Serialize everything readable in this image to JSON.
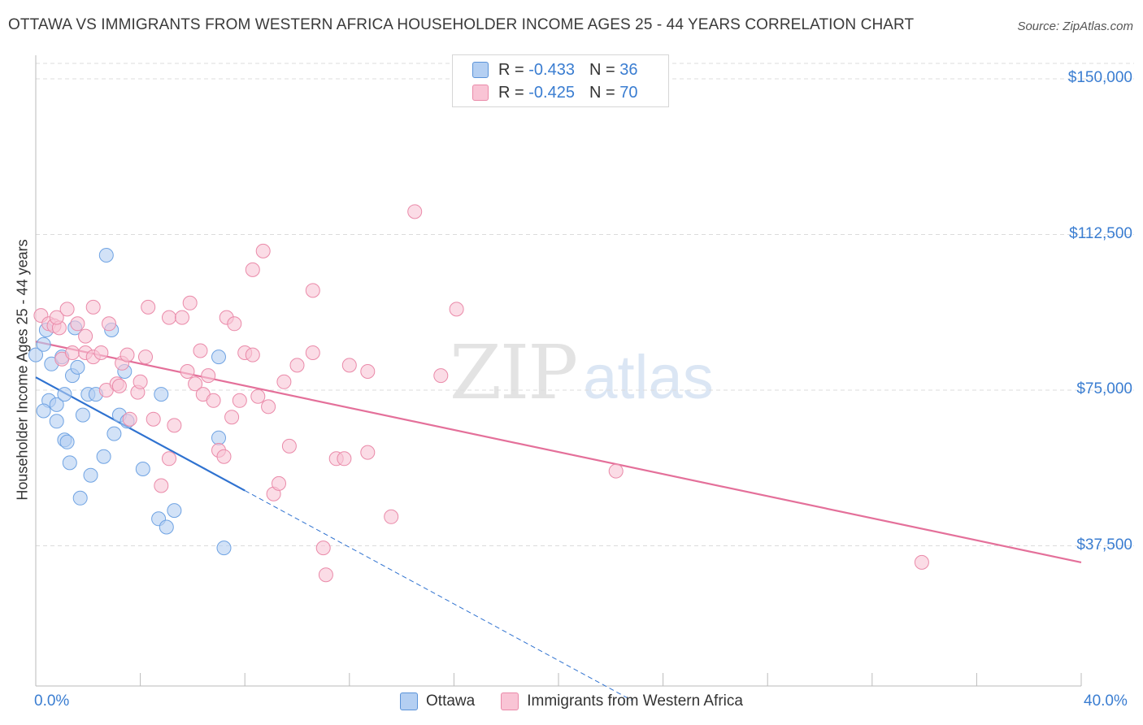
{
  "chart_data": {
    "type": "scatter",
    "title": "OTTAWA VS IMMIGRANTS FROM WESTERN AFRICA HOUSEHOLDER INCOME AGES 25 - 44 YEARS CORRELATION CHART",
    "source": "Source: ZipAtlas.com",
    "xlabel": "",
    "ylabel": "Householder Income Ages 25 - 44 years",
    "xlim": [
      0,
      40
    ],
    "ylim": [
      0,
      155000
    ],
    "x_tick_labels": {
      "min": "0.0%",
      "max": "40.0%"
    },
    "y_ticks": [
      {
        "value": 150000,
        "label": "$150,000"
      },
      {
        "value": 112500,
        "label": "$112,500"
      },
      {
        "value": 75000,
        "label": "$75,000"
      },
      {
        "value": 37500,
        "label": "$37,500"
      }
    ],
    "grid": true,
    "watermark": {
      "zip": "ZIP",
      "atlas": "atlas"
    },
    "series": [
      {
        "name": "Ottawa",
        "color": "#6fa3e3",
        "fill": "#b4cff2",
        "line_color": "#2f72d0",
        "r_label": "R =",
        "r_value": "-0.433",
        "n_label": "N =",
        "n_value": "36",
        "trend": {
          "x0": 0.0,
          "y0": 78100,
          "x1": 8.0,
          "y1": 50800,
          "dash_to_x": 22.8
        },
        "points": [
          [
            0.0,
            83500
          ],
          [
            0.3,
            86000
          ],
          [
            0.4,
            89500
          ],
          [
            0.6,
            81300
          ],
          [
            0.5,
            72500
          ],
          [
            0.8,
            71500
          ],
          [
            0.3,
            70000
          ],
          [
            0.8,
            67500
          ],
          [
            1.1,
            74000
          ],
          [
            1.0,
            83000
          ],
          [
            1.4,
            78500
          ],
          [
            1.6,
            80500
          ],
          [
            1.5,
            90000
          ],
          [
            1.1,
            63000
          ],
          [
            1.2,
            62500
          ],
          [
            1.3,
            57500
          ],
          [
            1.8,
            69000
          ],
          [
            2.0,
            74000
          ],
          [
            2.3,
            74000
          ],
          [
            2.1,
            54500
          ],
          [
            1.7,
            49000
          ],
          [
            2.6,
            59000
          ],
          [
            2.9,
            89500
          ],
          [
            3.0,
            64500
          ],
          [
            3.2,
            69000
          ],
          [
            3.4,
            79500
          ],
          [
            3.5,
            67500
          ],
          [
            2.7,
            107500
          ],
          [
            4.1,
            56000
          ],
          [
            4.8,
            74000
          ],
          [
            4.7,
            44000
          ],
          [
            5.0,
            42000
          ],
          [
            5.3,
            46000
          ],
          [
            7.0,
            63500
          ],
          [
            7.0,
            83000
          ],
          [
            7.2,
            37000
          ]
        ]
      },
      {
        "name": "Immigrants from Western Africa",
        "color": "#ea8aa9",
        "fill": "#f9c4d5",
        "line_color": "#e4709a",
        "r_label": "R =",
        "r_value": "-0.425",
        "n_label": "N =",
        "n_value": "70",
        "trend": {
          "x0": 0.0,
          "y0": 86700,
          "x1": 40.0,
          "y1": 33500
        },
        "points": [
          [
            0.2,
            93000
          ],
          [
            0.5,
            91000
          ],
          [
            0.7,
            90500
          ],
          [
            0.9,
            90000
          ],
          [
            0.8,
            92500
          ],
          [
            1.0,
            82500
          ],
          [
            1.2,
            94500
          ],
          [
            1.4,
            84000
          ],
          [
            1.6,
            91000
          ],
          [
            1.9,
            84000
          ],
          [
            1.9,
            88000
          ],
          [
            2.2,
            95000
          ],
          [
            2.2,
            83000
          ],
          [
            2.5,
            84000
          ],
          [
            2.8,
            91000
          ],
          [
            2.7,
            75000
          ],
          [
            3.1,
            76500
          ],
          [
            3.2,
            76000
          ],
          [
            3.3,
            81500
          ],
          [
            3.5,
            83500
          ],
          [
            3.6,
            68000
          ],
          [
            3.9,
            74500
          ],
          [
            4.0,
            77000
          ],
          [
            4.2,
            83000
          ],
          [
            4.3,
            95000
          ],
          [
            4.5,
            68000
          ],
          [
            4.8,
            52000
          ],
          [
            5.1,
            58500
          ],
          [
            5.1,
            92500
          ],
          [
            5.3,
            66500
          ],
          [
            5.6,
            92500
          ],
          [
            5.8,
            79500
          ],
          [
            5.9,
            96000
          ],
          [
            6.1,
            76500
          ],
          [
            6.3,
            84500
          ],
          [
            6.4,
            74000
          ],
          [
            6.6,
            78500
          ],
          [
            6.8,
            72500
          ],
          [
            7.0,
            60500
          ],
          [
            7.2,
            59000
          ],
          [
            7.3,
            92500
          ],
          [
            7.5,
            68500
          ],
          [
            7.6,
            91000
          ],
          [
            7.8,
            72500
          ],
          [
            8.0,
            84000
          ],
          [
            8.3,
            83500
          ],
          [
            8.5,
            73500
          ],
          [
            8.7,
            108500
          ],
          [
            8.3,
            104000
          ],
          [
            8.9,
            71000
          ],
          [
            9.1,
            50000
          ],
          [
            9.3,
            52500
          ],
          [
            9.5,
            77000
          ],
          [
            9.7,
            61500
          ],
          [
            10.0,
            81000
          ],
          [
            10.6,
            84000
          ],
          [
            10.6,
            99000
          ],
          [
            11.0,
            37000
          ],
          [
            11.1,
            30500
          ],
          [
            11.5,
            58500
          ],
          [
            11.8,
            58500
          ],
          [
            12.0,
            81000
          ],
          [
            12.7,
            79500
          ],
          [
            12.7,
            60000
          ],
          [
            13.6,
            44500
          ],
          [
            14.5,
            118000
          ],
          [
            15.5,
            78500
          ],
          [
            16.1,
            94500
          ],
          [
            22.2,
            55500
          ],
          [
            33.9,
            33500
          ]
        ]
      }
    ]
  }
}
